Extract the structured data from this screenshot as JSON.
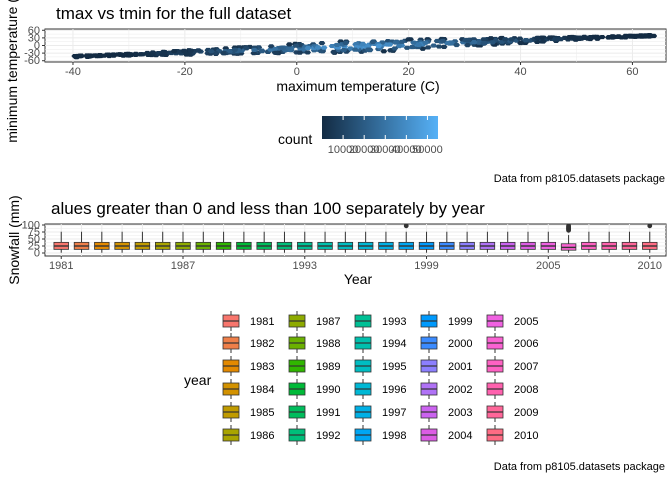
{
  "chart_data": [
    {
      "type": "heatmap",
      "title": "tmax vs tmin for the full dataset",
      "xlabel": "maximum temperature (C)",
      "ylabel": "minimum temperature (C)",
      "x_ticks": [
        "-40",
        "-20",
        "0",
        "20",
        "40",
        "60"
      ],
      "y_ticks": [
        "-60",
        "-30",
        "0",
        "30",
        "60"
      ],
      "xlim": [
        -45,
        66
      ],
      "ylim": [
        -65,
        65
      ],
      "legend": {
        "title": "count",
        "position": "bottom",
        "colors": [
          "#132B43",
          "#56B1F7"
        ],
        "ticks": [
          "10000",
          "20000",
          "30000",
          "40000",
          "50000"
        ]
      },
      "caption": "Data from p8105.datasets package",
      "note": "hexagonal bin density of tmin against tmax"
    },
    {
      "type": "box",
      "title": "alues greater than 0 and less than 100 separately by year",
      "xlabel": "Year",
      "ylabel": "Snowfall (mm)",
      "x_ticks": [
        "1981",
        "1987",
        "1993",
        "1999",
        "2005",
        "2010"
      ],
      "y_ticks": [
        "0",
        "25",
        "50",
        "75",
        "100"
      ],
      "ylim": [
        0,
        100
      ],
      "categories": [
        "1981",
        "1982",
        "1983",
        "1984",
        "1985",
        "1986",
        "1987",
        "1988",
        "1989",
        "1990",
        "1991",
        "1992",
        "1993",
        "1994",
        "1995",
        "1996",
        "1997",
        "1998",
        "1999",
        "2000",
        "2001",
        "2002",
        "2003",
        "2004",
        "2005",
        "2006",
        "2007",
        "2008",
        "2009",
        "2010"
      ],
      "colors": [
        "#F8766D",
        "#EF7F49",
        "#E38900",
        "#D39200",
        "#C09B00",
        "#A9A400",
        "#8EAB00",
        "#6BB100",
        "#30B600",
        "#00BA38",
        "#00BD5C",
        "#00BF7A",
        "#00C095",
        "#00C0AD",
        "#00BDC2",
        "#00B8D5",
        "#00B0E5",
        "#00A6F3",
        "#009AFD",
        "#3B8BFF",
        "#8C7FFF",
        "#B072F6",
        "#CB63F0",
        "#DD5CE4",
        "#F061E1",
        "#FA62D3",
        "#FF61C3",
        "#FF61AE",
        "#FF6699",
        "#FF6C84"
      ],
      "q1": [
        13,
        13,
        13,
        13,
        13,
        13,
        13,
        13,
        13,
        13,
        13,
        13,
        13,
        13,
        13,
        13,
        13,
        13,
        13,
        13,
        13,
        13,
        13,
        13,
        13,
        10,
        13,
        13,
        13,
        13
      ],
      "median": [
        25,
        25,
        25,
        25,
        25,
        25,
        25,
        25,
        25,
        25,
        25,
        25,
        25,
        25,
        25,
        25,
        25,
        25,
        25,
        25,
        25,
        25,
        25,
        25,
        25,
        20,
        25,
        25,
        25,
        25
      ],
      "q3": [
        38,
        38,
        38,
        38,
        38,
        38,
        38,
        38,
        38,
        38,
        38,
        38,
        38,
        38,
        38,
        38,
        38,
        38,
        38,
        38,
        38,
        38,
        38,
        38,
        38,
        33,
        38,
        38,
        38,
        38
      ],
      "whisker_low": [
        1,
        1,
        1,
        1,
        1,
        1,
        1,
        1,
        1,
        1,
        1,
        1,
        1,
        1,
        1,
        1,
        1,
        1,
        1,
        1,
        1,
        1,
        1,
        1,
        1,
        1,
        1,
        1,
        1,
        1
      ],
      "whisker_high": [
        76,
        76,
        76,
        76,
        76,
        76,
        76,
        76,
        76,
        76,
        76,
        76,
        76,
        76,
        76,
        76,
        76,
        76,
        76,
        76,
        76,
        76,
        76,
        76,
        76,
        64,
        76,
        76,
        76,
        76
      ],
      "outliers": [
        [],
        [],
        [],
        [],
        [],
        [],
        [],
        [],
        [],
        [],
        [],
        [],
        [],
        [],
        [],
        [],
        [],
        [
          97
        ],
        [],
        [],
        [],
        [],
        [],
        [],
        [],
        [
          81,
          84,
          86,
          89,
          91,
          94,
          97
        ],
        [],
        [],
        [],
        [
          97
        ]
      ],
      "legend": {
        "title": "year",
        "position": "bottom"
      },
      "caption": "Data from p8105.datasets package"
    }
  ]
}
